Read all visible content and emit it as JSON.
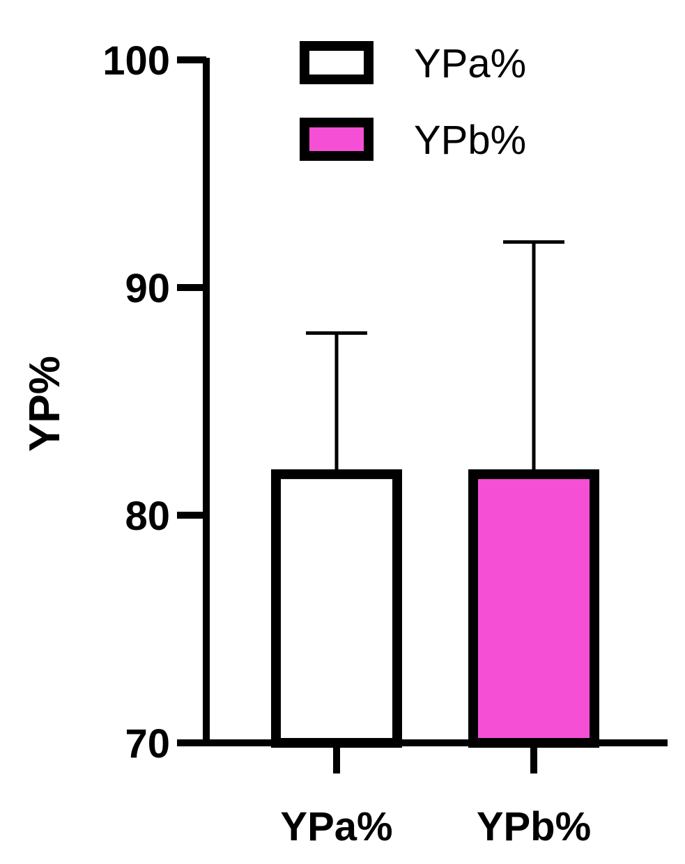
{
  "chart_data": {
    "type": "bar",
    "title": "",
    "xlabel": "",
    "ylabel": "YP%",
    "ylim": [
      70,
      100
    ],
    "yticks": [
      70,
      80,
      90,
      100
    ],
    "categories": [
      "YPa%",
      "YPb%"
    ],
    "values": [
      81.8,
      81.8
    ],
    "error_upper": [
      88.0,
      92.0
    ],
    "colors": [
      "#ffffff",
      "#f54fd5"
    ],
    "edge_color": "#000000",
    "grid": false,
    "legend": {
      "position": "top-right",
      "entries": [
        {
          "label": "YPa%",
          "color": "#ffffff"
        },
        {
          "label": "YPb%",
          "color": "#f54fd5"
        }
      ]
    }
  }
}
